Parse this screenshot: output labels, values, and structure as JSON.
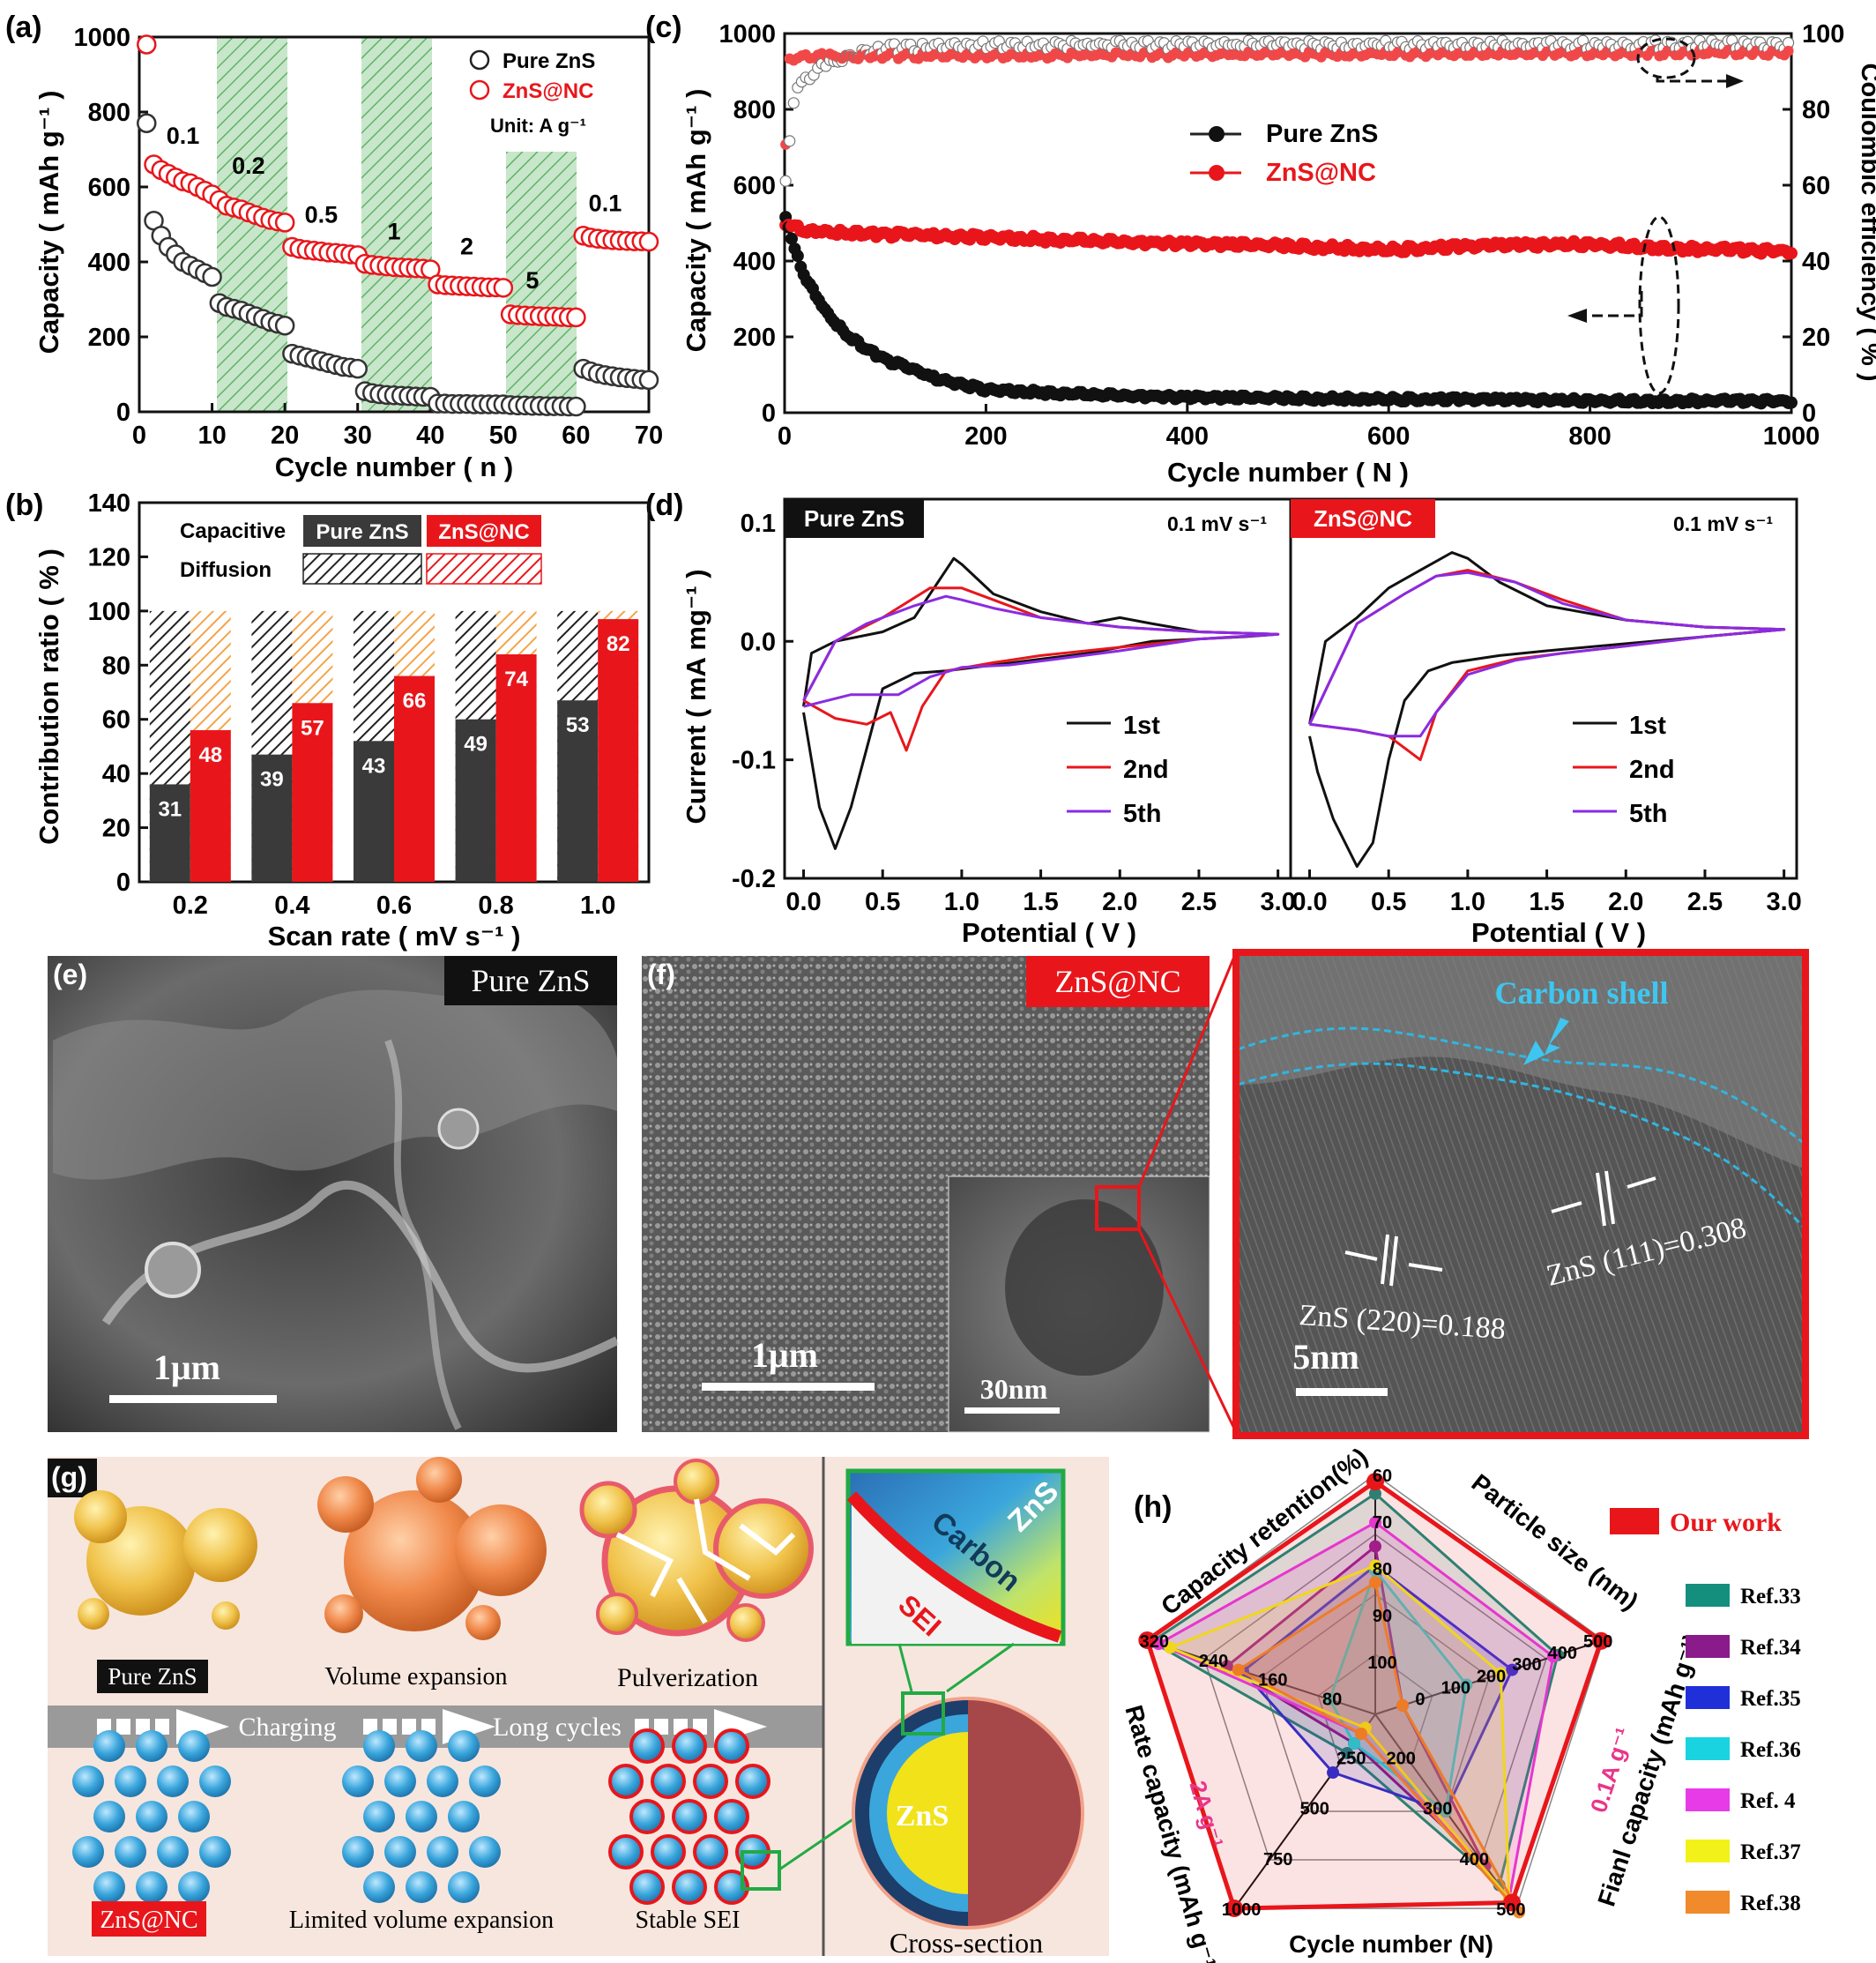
{
  "panels": {
    "a": "(a)",
    "b": "(b)",
    "c": "(c)",
    "d": "(d)",
    "e": "(e)",
    "f": "(f)",
    "g": "(g)",
    "h": "(h)"
  },
  "colors": {
    "pure": "#1a1a1a",
    "nc": "#e8161b",
    "green": "#3bab54",
    "cyan": "#1ca3d6",
    "orange": "#f4a44a"
  },
  "chart_data": [
    {
      "id": "a",
      "type": "scatter",
      "xlabel": "Cycle number ( n )",
      "ylabel": "Capacity ( mAh g⁻¹ )",
      "xlim": [
        0,
        70
      ],
      "ylim": [
        0,
        1000
      ],
      "xticks": [
        "0",
        "10",
        "20",
        "30",
        "40",
        "50",
        "60",
        "70"
      ],
      "yticks": [
        "0",
        "200",
        "400",
        "600",
        "800",
        "1000"
      ],
      "legend": {
        "pure": "Pure ZnS",
        "nc": "ZnS@NC",
        "unit": "Unit: A g⁻¹"
      },
      "rate_labels": [
        {
          "text": "0.1",
          "x": 6,
          "y": 715
        },
        {
          "text": "0.2",
          "x": 15,
          "y": 635
        },
        {
          "text": "0.5",
          "x": 25,
          "y": 505
        },
        {
          "text": "1",
          "x": 35,
          "y": 460
        },
        {
          "text": "2",
          "x": 45,
          "y": 420
        },
        {
          "text": "5",
          "x": 54,
          "y": 330
        },
        {
          "text": "0.1",
          "x": 64,
          "y": 535
        }
      ],
      "segments": [
        {
          "start": 1,
          "end": 10,
          "pure": [
            770,
            510,
            470,
            440,
            420,
            400,
            390,
            380,
            370,
            360
          ],
          "nc": [
            980,
            660,
            645,
            635,
            625,
            615,
            610,
            600,
            590,
            580
          ]
        },
        {
          "start": 11,
          "end": 20,
          "pure": [
            290,
            280,
            275,
            270,
            262,
            255,
            248,
            240,
            235,
            230
          ],
          "nc": [
            565,
            550,
            545,
            540,
            532,
            525,
            518,
            512,
            508,
            505
          ]
        },
        {
          "start": 21,
          "end": 30,
          "pure": [
            155,
            150,
            145,
            140,
            135,
            130,
            125,
            120,
            118,
            115
          ],
          "nc": [
            440,
            435,
            432,
            430,
            428,
            425,
            424,
            422,
            420,
            418
          ]
        },
        {
          "start": 31,
          "end": 40,
          "pure": [
            55,
            50,
            47,
            45,
            44,
            43,
            42,
            41,
            40,
            40
          ],
          "nc": [
            395,
            392,
            390,
            388,
            386,
            385,
            384,
            383,
            382,
            380
          ]
        },
        {
          "start": 41,
          "end": 50,
          "pure": [
            22,
            22,
            21,
            21,
            21,
            20,
            20,
            20,
            20,
            20
          ],
          "nc": [
            340,
            338,
            337,
            336,
            335,
            334,
            333,
            332,
            332,
            331
          ]
        },
        {
          "start": 51,
          "end": 60,
          "pure": [
            18,
            17,
            17,
            16,
            16,
            15,
            15,
            15,
            14,
            14
          ],
          "nc": [
            260,
            258,
            257,
            256,
            255,
            254,
            254,
            253,
            252,
            252
          ]
        },
        {
          "start": 61,
          "end": 70,
          "pure": [
            115,
            108,
            102,
            98,
            95,
            92,
            90,
            88,
            86,
            85
          ],
          "nc": [
            470,
            465,
            462,
            460,
            458,
            457,
            456,
            455,
            455,
            454
          ]
        }
      ]
    },
    {
      "id": "b",
      "type": "bar",
      "xlabel": "Scan rate ( mV s⁻¹ )",
      "ylabel": "Contribution ratio ( % )",
      "ylim": [
        0,
        140
      ],
      "yticks": [
        "0",
        "20",
        "40",
        "60",
        "80",
        "100",
        "120",
        "140"
      ],
      "categories": [
        "0.2",
        "0.4",
        "0.6",
        "0.8",
        "1.0"
      ],
      "series": [
        {
          "name": "Pure ZnS",
          "values": [
            31,
            39,
            43,
            49,
            53
          ],
          "bar_heights": [
            36,
            47,
            52,
            60,
            67
          ]
        },
        {
          "name": "ZnS@NC",
          "values": [
            48,
            57,
            66,
            74,
            82
          ],
          "bar_heights": [
            56,
            66,
            76,
            84,
            97
          ]
        }
      ],
      "legend": {
        "capacitive": "Capacitive",
        "diffusion": "Diffusion",
        "pure": "Pure ZnS",
        "nc": "ZnS@NC"
      }
    },
    {
      "id": "c",
      "type": "scatter",
      "xlabel": "Cycle number ( N )",
      "ylabel": "Capacity ( mAh g⁻¹ )",
      "ylabel_right": "Coulombic efficiency ( % )",
      "xlim": [
        0,
        1000
      ],
      "ylim": [
        0,
        1000
      ],
      "ylim_right": [
        0,
        100
      ],
      "xticks": [
        "0",
        "200",
        "400",
        "600",
        "800",
        "1000"
      ],
      "yticks": [
        "0",
        "200",
        "400",
        "600",
        "800",
        "1000"
      ],
      "yticks_right": [
        "0",
        "20",
        "40",
        "60",
        "80",
        "100"
      ],
      "legend": {
        "pure": "Pure ZnS",
        "nc": "ZnS@NC"
      },
      "pure_capacity": {
        "x": [
          1,
          10,
          20,
          40,
          60,
          80,
          100,
          150,
          200,
          300,
          400,
          600,
          800,
          1000
        ],
        "y": [
          520,
          430,
          360,
          270,
          210,
          170,
          140,
          90,
          60,
          48,
          40,
          36,
          32,
          30
        ]
      },
      "nc_capacity": {
        "x": [
          1,
          20,
          100,
          200,
          400,
          500,
          600,
          700,
          800,
          900,
          1000
        ],
        "y": [
          500,
          480,
          470,
          462,
          445,
          440,
          430,
          440,
          445,
          432,
          425
        ]
      },
      "pure_ce": {
        "x": [
          1,
          10,
          30,
          60,
          100,
          200,
          1000
        ],
        "y": [
          60,
          85,
          90,
          94,
          96,
          97,
          97
        ]
      },
      "nc_ce": {
        "x": [
          1,
          5,
          20,
          1000
        ],
        "y": [
          70,
          93,
          94,
          95
        ]
      }
    },
    {
      "id": "d",
      "type": "line",
      "xlabel": "Potential ( V )",
      "ylabel": "Current ( mA mg⁻¹ )",
      "xlim": [
        -0.2,
        3.0
      ],
      "ylim": [
        -0.2,
        0.1
      ],
      "xticks": [
        "0.0",
        "0.5",
        "1.0",
        "1.5",
        "2.0",
        "2.5",
        "3.0"
      ],
      "yticks": [
        "-0.2",
        "-0.1",
        "0.0",
        "0.1"
      ],
      "subplots": [
        {
          "title": "Pure ZnS",
          "rate": "0.1 mV s⁻¹",
          "series": [
            {
              "name": "1st",
              "color": "#111111",
              "x": [
                0.0,
                0.05,
                0.1,
                0.2,
                0.3,
                0.4,
                0.5,
                0.7,
                0.9,
                1.2,
                1.5,
                1.8,
                2.0,
                2.2,
                2.5,
                2.8,
                3.0,
                2.5,
                2.2,
                2.0,
                1.8,
                1.5,
                1.2,
                1.0,
                0.95,
                0.9,
                0.7,
                0.5,
                0.2,
                0.05,
                0.0
              ],
              "y": [
                -0.06,
                -0.1,
                -0.14,
                -0.175,
                -0.14,
                -0.09,
                -0.04,
                -0.027,
                -0.025,
                -0.02,
                -0.015,
                -0.01,
                -0.005,
                0.0,
                0.002,
                0.004,
                0.006,
                0.008,
                0.015,
                0.02,
                0.015,
                0.025,
                0.04,
                0.065,
                0.07,
                0.06,
                0.02,
                0.008,
                0.0,
                -0.01,
                -0.055
              ]
            },
            {
              "name": "2nd",
              "color": "#e8161b",
              "x": [
                0.0,
                0.2,
                0.4,
                0.55,
                0.65,
                0.75,
                0.9,
                1.2,
                1.5,
                2.0,
                2.5,
                3.0,
                2.5,
                2.0,
                1.5,
                1.2,
                1.0,
                0.8,
                0.5,
                0.2,
                0.0
              ],
              "y": [
                -0.05,
                -0.065,
                -0.07,
                -0.06,
                -0.092,
                -0.055,
                -0.025,
                -0.018,
                -0.012,
                -0.005,
                0.002,
                0.006,
                0.008,
                0.012,
                0.02,
                0.035,
                0.045,
                0.045,
                0.02,
                0.0,
                -0.05
              ]
            },
            {
              "name": "5th",
              "color": "#8a2be2",
              "x": [
                0.0,
                0.3,
                0.6,
                0.8,
                1.0,
                1.3,
                1.6,
                2.0,
                2.5,
                3.0,
                2.5,
                2.0,
                1.5,
                1.2,
                1.0,
                0.9,
                0.7,
                0.4,
                0.2,
                0.0
              ],
              "y": [
                -0.055,
                -0.045,
                -0.045,
                -0.03,
                -0.022,
                -0.02,
                -0.015,
                -0.008,
                0.002,
                0.006,
                0.008,
                0.012,
                0.02,
                0.028,
                0.035,
                0.038,
                0.03,
                0.015,
                0.0,
                -0.05
              ]
            }
          ]
        },
        {
          "title": "ZnS@NC",
          "rate": "0.1 mV s⁻¹",
          "series": [
            {
              "name": "1st",
              "color": "#111111",
              "x": [
                0.0,
                0.05,
                0.15,
                0.3,
                0.4,
                0.5,
                0.6,
                0.75,
                0.9,
                1.2,
                1.5,
                2.0,
                2.5,
                3.0,
                2.5,
                2.0,
                1.5,
                1.2,
                1.0,
                0.9,
                0.7,
                0.5,
                0.3,
                0.1,
                0.0
              ],
              "y": [
                -0.08,
                -0.11,
                -0.15,
                -0.19,
                -0.17,
                -0.1,
                -0.05,
                -0.025,
                -0.018,
                -0.012,
                -0.008,
                -0.002,
                0.004,
                0.01,
                0.012,
                0.018,
                0.03,
                0.05,
                0.07,
                0.075,
                0.06,
                0.045,
                0.02,
                0.0,
                -0.07
              ]
            },
            {
              "name": "2nd",
              "color": "#e8161b",
              "x": [
                0.0,
                0.3,
                0.5,
                0.6,
                0.7,
                0.8,
                1.0,
                1.3,
                1.6,
                2.0,
                2.5,
                3.0,
                2.5,
                2.0,
                1.6,
                1.3,
                1.0,
                0.8,
                0.6,
                0.3,
                0.0
              ],
              "y": [
                -0.07,
                -0.075,
                -0.08,
                -0.09,
                -0.1,
                -0.06,
                -0.025,
                -0.015,
                -0.01,
                -0.004,
                0.004,
                0.01,
                0.012,
                0.018,
                0.035,
                0.05,
                0.06,
                0.055,
                0.04,
                0.015,
                -0.07
              ]
            },
            {
              "name": "5th",
              "color": "#8a2be2",
              "x": [
                0.0,
                0.3,
                0.5,
                0.7,
                0.8,
                1.0,
                1.3,
                1.6,
                2.0,
                2.5,
                3.0,
                2.5,
                2.0,
                1.6,
                1.3,
                1.0,
                0.8,
                0.6,
                0.3,
                0.0
              ],
              "y": [
                -0.07,
                -0.075,
                -0.08,
                -0.08,
                -0.06,
                -0.028,
                -0.016,
                -0.01,
                -0.004,
                0.004,
                0.01,
                0.012,
                0.018,
                0.032,
                0.05,
                0.058,
                0.055,
                0.04,
                0.015,
                -0.07
              ]
            }
          ]
        }
      ],
      "legend": [
        "1st",
        "2nd",
        "5th"
      ]
    },
    {
      "id": "h",
      "type": "radar",
      "axes": [
        {
          "name": "Capacity retention(%)",
          "ticks": [
            "100",
            "90",
            "80",
            "70",
            "60"
          ]
        },
        {
          "name": "Particle size (nm)",
          "ticks": [
            "0",
            "100",
            "200",
            "300",
            "400",
            "500"
          ]
        },
        {
          "name": "Fianl capacity (mAh g⁻¹)",
          "sub": "0.1A g⁻¹",
          "ticks": [
            "200",
            "300",
            "400",
            "500"
          ]
        },
        {
          "name": "Cycle number (N)",
          "ticks": [
            "250",
            "500",
            "750",
            "1000"
          ]
        },
        {
          "name": "Rate capacity (mAh g⁻¹)",
          "sub": "2A g⁻¹",
          "ticks": [
            "80",
            "160",
            "240",
            "320"
          ]
        }
      ],
      "series": [
        {
          "name": "Our work",
          "color": "#e8161b",
          "values": [
            0.97,
            0.99,
            0.97,
            1.0,
            1.0
          ]
        },
        {
          "name": "Ref.33",
          "color": "#148f7e",
          "values": [
            0.92,
            0.8,
            0.88,
            0.2,
            0.98
          ]
        },
        {
          "name": "Ref.34",
          "color": "#8b1a8b",
          "values": [
            0.7,
            0.12,
            0.78,
            0.15,
            0.65
          ]
        },
        {
          "name": "Ref.35",
          "color": "#2030d8",
          "values": [
            0.62,
            0.6,
            0.5,
            0.3,
            0.58
          ]
        },
        {
          "name": "Ref.36",
          "color": "#19d3e0",
          "values": [
            0.6,
            0.4,
            0.5,
            0.15,
            0.2
          ]
        },
        {
          "name": "Ref. 4",
          "color": "#e83be8",
          "values": [
            0.8,
            0.78,
            0.95,
            0.1,
            0.95
          ]
        },
        {
          "name": "Ref.37",
          "color": "#f2f21a",
          "values": [
            0.62,
            0.55,
            0.95,
            0.07,
            0.9
          ]
        },
        {
          "name": "Ref.38",
          "color": "#f08a2a",
          "values": [
            0.55,
            0.12,
            1.02,
            0.1,
            0.6
          ]
        }
      ]
    }
  ],
  "images": {
    "e": {
      "label": "Pure ZnS",
      "scale": "1μm"
    },
    "f": {
      "label": "ZnS@NC",
      "scale": "1μm",
      "inset_scale": "30nm"
    },
    "hrtem": {
      "shell": "Carbon shell",
      "d220": "ZnS (220)=0.188",
      "d111": "ZnS (111)=0.308",
      "scale": "5nm"
    }
  },
  "schematic": {
    "pure": "Pure ZnS",
    "expansion": "Volume expansion",
    "pulverization": "Pulverization",
    "charging": "Charging",
    "long_cycles": "Long cycles",
    "nc": "ZnS@NC",
    "limited": "Limited volume expansion",
    "stable": "Stable SEI",
    "cross": "Cross-section",
    "carbon": "Carbon",
    "zns": "ZnS",
    "sei": "SEI",
    "core": "ZnS"
  }
}
